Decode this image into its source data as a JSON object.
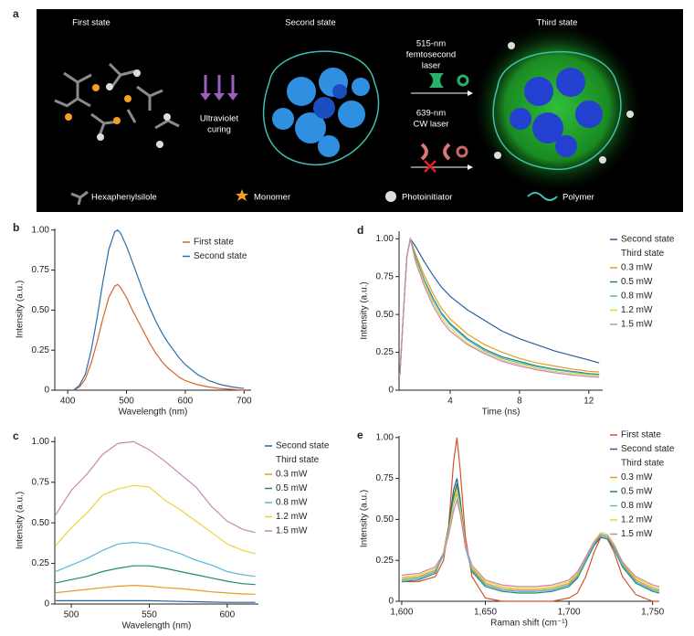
{
  "diagram": {
    "panel": "a",
    "states": [
      "First state",
      "Second state",
      "Third state"
    ],
    "uv_label": [
      "Ultraviolet",
      "curing"
    ],
    "laser_1": [
      "515-nm",
      "femtosecond",
      "laser"
    ],
    "laser_2": [
      "639-nm",
      "CW laser"
    ],
    "legend": [
      "Hexaphenylsilole",
      "Monomer",
      "Photoinitiator",
      "Polymer"
    ]
  },
  "chart_data": [
    {
      "panel": "b",
      "type": "line",
      "x_label": "Wavelength (nm)",
      "y_label": "Intensity (a.u.)",
      "xlim": [
        378,
        712
      ],
      "xticks": [
        400,
        500,
        600,
        700
      ],
      "ylim": [
        0,
        1.01
      ],
      "yticks": [
        0,
        0.25,
        {
          "value": 0.5,
          "label": "0.50"
        },
        0.75,
        {
          "value": 1,
          "label": "1.00"
        }
      ],
      "x": [
        410,
        420,
        430,
        440,
        450,
        460,
        470,
        480,
        485,
        490,
        500,
        510,
        520,
        530,
        540,
        550,
        560,
        570,
        580,
        590,
        600,
        620,
        640,
        660,
        680,
        700
      ],
      "series": [
        {
          "name": "First state",
          "color": "#d9622b",
          "values": [
            0,
            0.02,
            0.07,
            0.17,
            0.3,
            0.45,
            0.58,
            0.65,
            0.66,
            0.64,
            0.58,
            0.5,
            0.43,
            0.36,
            0.29,
            0.23,
            0.18,
            0.14,
            0.11,
            0.08,
            0.06,
            0.035,
            0.02,
            0.01,
            0.005,
            0
          ]
        },
        {
          "name": "Second state",
          "color": "#2a6ea8",
          "values": [
            0,
            0.03,
            0.1,
            0.25,
            0.45,
            0.68,
            0.88,
            0.99,
            1.0,
            0.98,
            0.9,
            0.8,
            0.7,
            0.6,
            0.51,
            0.43,
            0.36,
            0.3,
            0.25,
            0.2,
            0.16,
            0.1,
            0.06,
            0.035,
            0.02,
            0.01
          ]
        }
      ]
    },
    {
      "panel": "d",
      "type": "line",
      "x_label": "Time (ns)",
      "y_label": "Intensity (a.u.)",
      "legend_group_label": "Third state",
      "xlim": [
        1.05,
        12.8
      ],
      "xticks": [
        4,
        8,
        12
      ],
      "ylim": [
        0,
        1.05
      ],
      "yticks": [
        0,
        0.25,
        {
          "value": 0.5,
          "label": "0.50"
        },
        0.75,
        {
          "value": 1,
          "label": "1.00"
        }
      ],
      "x": [
        1.1,
        1.3,
        1.5,
        1.7,
        2,
        2.5,
        3,
        3.5,
        4,
        5,
        6,
        7,
        8,
        9,
        10,
        11,
        12,
        12.6
      ],
      "series": [
        {
          "name": "Second state",
          "color": "#2460a0",
          "values": [
            0.1,
            0.5,
            0.88,
            1.0,
            0.95,
            0.85,
            0.76,
            0.68,
            0.62,
            0.53,
            0.46,
            0.39,
            0.34,
            0.3,
            0.26,
            0.23,
            0.2,
            0.18
          ]
        },
        {
          "name": "0.3 mW",
          "color": "#e69a1e",
          "values": [
            0.1,
            0.5,
            0.88,
            1.0,
            0.9,
            0.76,
            0.64,
            0.54,
            0.47,
            0.37,
            0.3,
            0.25,
            0.21,
            0.18,
            0.16,
            0.14,
            0.125,
            0.12
          ]
        },
        {
          "name": "0.5 mW",
          "color": "#1e8a68",
          "values": [
            0.1,
            0.5,
            0.88,
            1.0,
            0.88,
            0.73,
            0.61,
            0.51,
            0.44,
            0.34,
            0.27,
            0.22,
            0.19,
            0.16,
            0.14,
            0.125,
            0.11,
            0.105
          ]
        },
        {
          "name": "0.8 mW",
          "color": "#5ab4dc",
          "values": [
            0.1,
            0.5,
            0.88,
            1.0,
            0.87,
            0.72,
            0.6,
            0.5,
            0.43,
            0.33,
            0.26,
            0.21,
            0.18,
            0.155,
            0.135,
            0.12,
            0.105,
            0.1
          ]
        },
        {
          "name": "1.2 mW",
          "color": "#ecd43a",
          "values": [
            0.1,
            0.5,
            0.88,
            1.0,
            0.86,
            0.71,
            0.58,
            0.48,
            0.41,
            0.31,
            0.25,
            0.2,
            0.17,
            0.145,
            0.125,
            0.11,
            0.1,
            0.095
          ]
        },
        {
          "name": "1.5 mW",
          "color": "#c986b4",
          "values": [
            0.1,
            0.5,
            0.88,
            1.0,
            0.85,
            0.69,
            0.56,
            0.46,
            0.39,
            0.3,
            0.24,
            0.19,
            0.16,
            0.135,
            0.115,
            0.1,
            0.09,
            0.085
          ]
        }
      ]
    },
    {
      "panel": "c",
      "type": "line",
      "x_label": "Wavelength (nm)",
      "y_label": "Intensity (a.u.)",
      "legend_group_label": "Third state",
      "xlim": [
        489.4,
        620
      ],
      "xticks": [
        500,
        550,
        600
      ],
      "ylim": [
        0,
        1.03
      ],
      "yticks": [
        0,
        0.25,
        {
          "value": 0.5,
          "label": "0.50"
        },
        0.75,
        {
          "value": 1,
          "label": "1.00"
        }
      ],
      "x": [
        490,
        500,
        510,
        520,
        530,
        540,
        550,
        560,
        570,
        580,
        590,
        600,
        610,
        618
      ],
      "series": [
        {
          "name": "Second state",
          "color": "#2460a0",
          "values": [
            0.02,
            0.02,
            0.02,
            0.02,
            0.02,
            0.02,
            0.02,
            0.018,
            0.016,
            0.014,
            0.012,
            0.01,
            0.01,
            0.01
          ]
        },
        {
          "name": "0.3 mW",
          "color": "#e69a1e",
          "values": [
            0.07,
            0.08,
            0.09,
            0.1,
            0.11,
            0.115,
            0.11,
            0.1,
            0.095,
            0.085,
            0.075,
            0.068,
            0.062,
            0.06
          ]
        },
        {
          "name": "0.5 mW",
          "color": "#1e8a68",
          "values": [
            0.13,
            0.15,
            0.17,
            0.2,
            0.22,
            0.235,
            0.235,
            0.22,
            0.2,
            0.18,
            0.16,
            0.14,
            0.125,
            0.12
          ]
        },
        {
          "name": "0.8 mW",
          "color": "#5ab4dc",
          "values": [
            0.2,
            0.24,
            0.28,
            0.33,
            0.37,
            0.38,
            0.37,
            0.34,
            0.31,
            0.27,
            0.24,
            0.2,
            0.18,
            0.17
          ]
        },
        {
          "name": "1.2 mW",
          "color": "#ecd43a",
          "values": [
            0.36,
            0.47,
            0.56,
            0.67,
            0.71,
            0.73,
            0.72,
            0.64,
            0.58,
            0.51,
            0.44,
            0.37,
            0.33,
            0.31
          ]
        },
        {
          "name": "1.5 mW",
          "color": "#c986b4",
          "values": [
            0.55,
            0.7,
            0.8,
            0.92,
            0.99,
            1.0,
            0.95,
            0.88,
            0.8,
            0.72,
            0.6,
            0.51,
            0.46,
            0.44
          ]
        }
      ]
    },
    {
      "panel": "e",
      "type": "line",
      "x_label": "Raman shift (cm⁻¹)",
      "y_label": "Intensity (a.u.)",
      "legend_group_label": "Third state",
      "xlim": [
        1598.4,
        1754
      ],
      "xticks": [
        {
          "value": 1600,
          "label": "1,600"
        },
        {
          "value": 1650,
          "label": "1,650"
        },
        {
          "value": 1700,
          "label": "1,700"
        },
        {
          "value": 1750,
          "label": "1,750"
        }
      ],
      "ylim": [
        0,
        1.01
      ],
      "yticks": [
        0,
        0.25,
        {
          "value": 0.5,
          "label": "0.50"
        },
        0.75,
        {
          "value": 1,
          "label": "1.00"
        }
      ],
      "x": [
        1600,
        1610,
        1620,
        1625,
        1628,
        1631,
        1633,
        1635,
        1638,
        1642,
        1650,
        1660,
        1670,
        1680,
        1690,
        1700,
        1705,
        1710,
        1715,
        1719,
        1723,
        1727,
        1732,
        1740,
        1750,
        1754
      ],
      "series": [
        {
          "name": "First state",
          "color": "#d4552a",
          "values": [
            0.12,
            0.12,
            0.15,
            0.25,
            0.45,
            0.85,
            1.0,
            0.8,
            0.4,
            0.15,
            0.02,
            0,
            0,
            0,
            0,
            0.02,
            0.05,
            0.15,
            0.3,
            0.39,
            0.38,
            0.3,
            0.15,
            0.04,
            0,
            0
          ]
        },
        {
          "name": "Second state",
          "color": "#2460a0",
          "values": [
            0.13,
            0.14,
            0.18,
            0.3,
            0.45,
            0.68,
            0.75,
            0.62,
            0.35,
            0.2,
            0.1,
            0.07,
            0.06,
            0.06,
            0.07,
            0.1,
            0.15,
            0.25,
            0.35,
            0.4,
            0.39,
            0.33,
            0.22,
            0.12,
            0.07,
            0.06
          ]
        },
        {
          "name": "0.3 mW",
          "color": "#e69a1e",
          "values": [
            0.14,
            0.15,
            0.19,
            0.3,
            0.43,
            0.62,
            0.7,
            0.58,
            0.35,
            0.2,
            0.11,
            0.08,
            0.07,
            0.07,
            0.08,
            0.11,
            0.16,
            0.26,
            0.36,
            0.41,
            0.4,
            0.34,
            0.23,
            0.13,
            0.08,
            0.07
          ]
        },
        {
          "name": "0.5 mW",
          "color": "#1e8a68",
          "values": [
            0.12,
            0.13,
            0.17,
            0.29,
            0.44,
            0.64,
            0.72,
            0.6,
            0.34,
            0.18,
            0.09,
            0.06,
            0.05,
            0.05,
            0.06,
            0.09,
            0.14,
            0.24,
            0.34,
            0.39,
            0.38,
            0.32,
            0.21,
            0.11,
            0.06,
            0.05
          ]
        },
        {
          "name": "0.8 mW",
          "color": "#5ab4dc",
          "values": [
            0.13,
            0.14,
            0.18,
            0.28,
            0.41,
            0.59,
            0.66,
            0.55,
            0.33,
            0.19,
            0.1,
            0.07,
            0.06,
            0.06,
            0.07,
            0.1,
            0.15,
            0.25,
            0.35,
            0.41,
            0.4,
            0.33,
            0.22,
            0.12,
            0.07,
            0.06
          ]
        },
        {
          "name": "1.2 mW",
          "color": "#ecd43a",
          "values": [
            0.15,
            0.16,
            0.2,
            0.3,
            0.42,
            0.6,
            0.68,
            0.57,
            0.35,
            0.21,
            0.12,
            0.09,
            0.08,
            0.08,
            0.09,
            0.12,
            0.17,
            0.27,
            0.37,
            0.42,
            0.41,
            0.35,
            0.24,
            0.14,
            0.09,
            0.08
          ]
        },
        {
          "name": "1.5 mW",
          "color": "#c986b4",
          "values": [
            0.16,
            0.17,
            0.21,
            0.29,
            0.4,
            0.55,
            0.62,
            0.53,
            0.34,
            0.22,
            0.13,
            0.1,
            0.09,
            0.09,
            0.1,
            0.13,
            0.18,
            0.27,
            0.36,
            0.4,
            0.39,
            0.34,
            0.24,
            0.15,
            0.1,
            0.09
          ]
        }
      ]
    }
  ]
}
